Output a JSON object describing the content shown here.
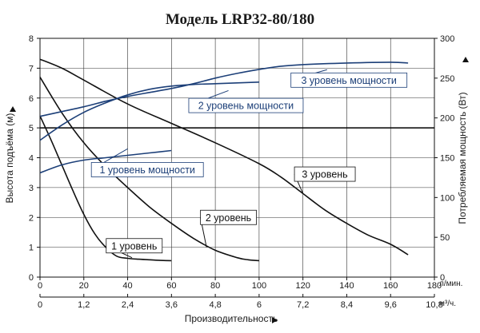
{
  "chart_data": {
    "type": "line",
    "title": "Модель LRP32-80/180",
    "xlabel": "Производительность",
    "xunit_top": "л/мин.",
    "xunit_bottom": "м³/ч.",
    "ylabel": "Высота подъёма (м)",
    "y2label": "Потребляемая мощность (Вт)",
    "xlim": [
      0,
      180
    ],
    "ylim": [
      0,
      8
    ],
    "y2lim": [
      0,
      300
    ],
    "xticks": [
      "0",
      "20",
      "40",
      "60",
      "80",
      "100",
      "120",
      "140",
      "160",
      "180"
    ],
    "xticks_bottom": [
      "0",
      "1,2",
      "2,4",
      "3,6",
      "4,8",
      "6",
      "7,2",
      "8,4",
      "9,6",
      "10,8"
    ],
    "yticks": [
      "0",
      "1",
      "2",
      "3",
      "4",
      "5",
      "6",
      "7",
      "8"
    ],
    "y2ticks": [
      "0",
      "50",
      "100",
      "150",
      "200",
      "250",
      "300"
    ],
    "grid": true,
    "reference_line_y": 5,
    "head_series": [
      {
        "name": "1 уровень",
        "axis": "left",
        "x": [
          0,
          5,
          10,
          15,
          20,
          25,
          30,
          35,
          40,
          45,
          50,
          55,
          60
        ],
        "y": [
          5.4,
          4.6,
          3.75,
          2.9,
          2.1,
          1.45,
          1.0,
          0.7,
          0.63,
          0.6,
          0.58,
          0.56,
          0.55
        ]
      },
      {
        "name": "2 уровень",
        "axis": "left",
        "x": [
          0,
          10,
          20,
          30,
          40,
          50,
          60,
          70,
          80,
          90,
          95,
          100
        ],
        "y": [
          6.7,
          5.5,
          4.5,
          3.7,
          3.0,
          2.35,
          1.8,
          1.3,
          0.9,
          0.65,
          0.58,
          0.55
        ]
      },
      {
        "name": "3 уровень",
        "axis": "left",
        "x": [
          0,
          10,
          20,
          40,
          60,
          80,
          100,
          110,
          120,
          130,
          140,
          150,
          160,
          168
        ],
        "y": [
          7.3,
          7.0,
          6.6,
          5.8,
          5.15,
          4.5,
          3.8,
          3.35,
          2.8,
          2.25,
          1.8,
          1.4,
          1.1,
          0.75
        ]
      }
    ],
    "power_series": [
      {
        "name": "1 уровень мощности",
        "axis": "right",
        "x": [
          0,
          10,
          20,
          30,
          40,
          50,
          60
        ],
        "y": [
          131,
          141,
          147,
          150,
          153,
          156,
          159
        ]
      },
      {
        "name": "2 уровень мощности",
        "axis": "right",
        "x": [
          0,
          10,
          20,
          30,
          40,
          50,
          60,
          70,
          80,
          90,
          100
        ],
        "y": [
          172,
          191,
          207,
          219,
          229,
          236,
          240,
          242,
          243,
          244,
          245
        ]
      },
      {
        "name": "3 уровень мощности",
        "axis": "right",
        "x": [
          0,
          10,
          20,
          30,
          40,
          50,
          60,
          70,
          80,
          90,
          100,
          110,
          120,
          140,
          160,
          168
        ],
        "y": [
          202,
          208,
          214,
          221,
          227,
          232,
          237,
          243,
          250,
          256,
          261,
          265,
          267,
          269,
          270,
          269
        ]
      }
    ],
    "colors": {
      "head": "#111111",
      "power": "#1c3f78",
      "grid": "#333333",
      "axis": "#111111"
    }
  }
}
